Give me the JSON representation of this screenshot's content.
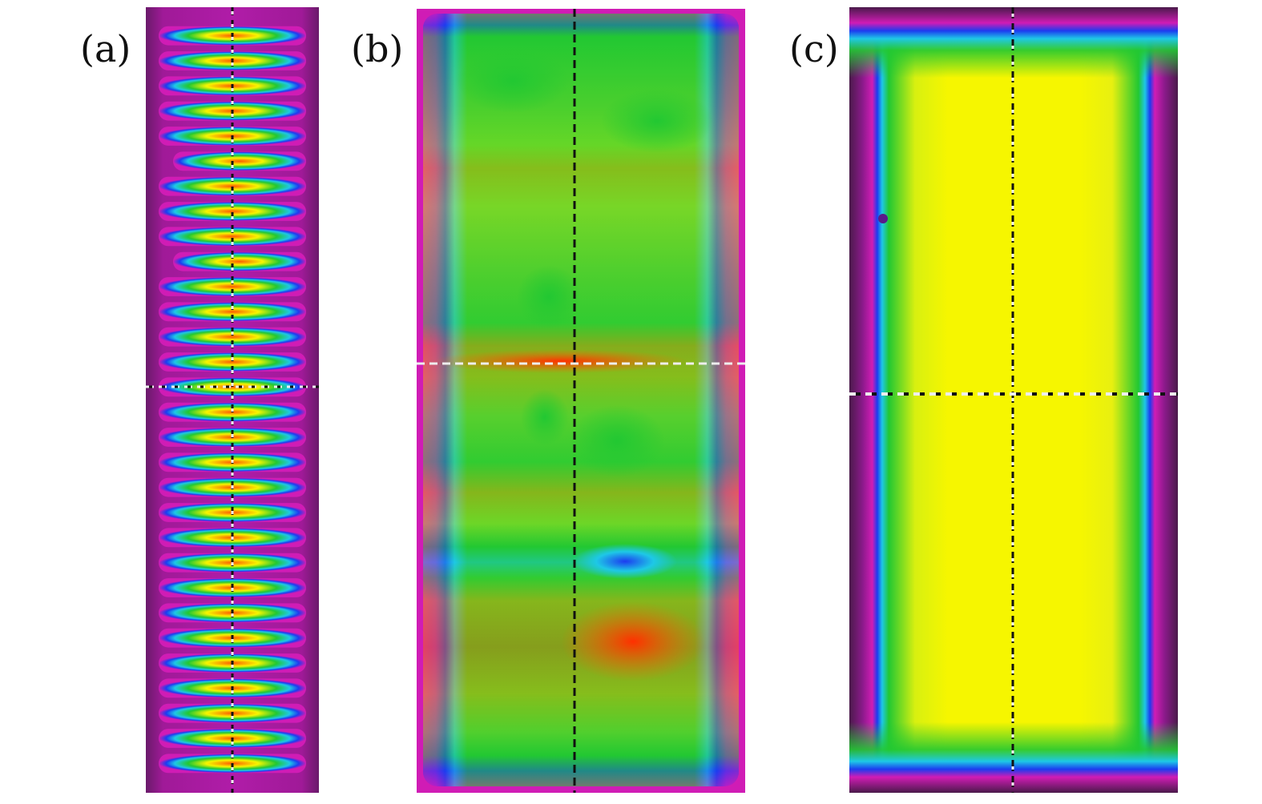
{
  "figure": {
    "panels": [
      {
        "id": "a",
        "label": "(a)"
      },
      {
        "id": "b",
        "label": "(b)"
      },
      {
        "id": "c",
        "label": "(c)"
      }
    ]
  },
  "colors": {
    "background_outer": "#7a1f73",
    "magenta": "#d01cb5",
    "blue": "#1c3cf0",
    "cyan": "#1ec8e6",
    "green": "#22c832",
    "yellow": "#f6f600",
    "orange": "#ff8a00",
    "red": "#ff2a00",
    "crosshair_dark": "#111111",
    "crosshair_light": "#f0f0f0"
  }
}
